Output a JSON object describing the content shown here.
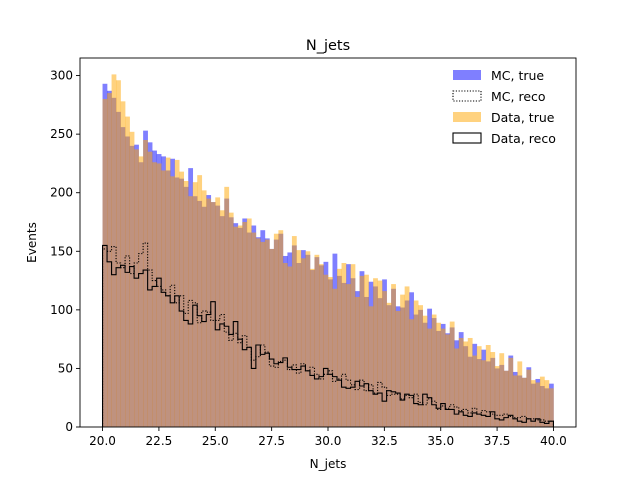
{
  "chart_data": {
    "type": "histogram",
    "title": "N_jets",
    "xlabel": "N_jets",
    "ylabel": "Events",
    "xlim": [
      19.0,
      41.0
    ],
    "ylim": [
      0,
      315
    ],
    "x_ticks": [
      "20.0",
      "22.5",
      "25.0",
      "27.5",
      "30.0",
      "32.5",
      "35.0",
      "37.5",
      "40.0"
    ],
    "y_ticks": [
      "0",
      "50",
      "100",
      "150",
      "200",
      "250",
      "300"
    ],
    "bins": {
      "start": 20.0,
      "end": 40.0,
      "count": 100
    },
    "legend_position": "top-right",
    "grid": false,
    "series": [
      {
        "name": "MC, true",
        "style": "filled",
        "color": "#0000ff",
        "opacity": 0.5,
        "values": [
          293,
          287,
          281,
          269,
          256,
          248,
          240,
          241,
          226,
          253,
          243,
          236,
          233,
          231,
          219,
          229,
          213,
          212,
          205,
          221,
          197,
          193,
          188,
          198,
          192,
          189,
          180,
          195,
          179,
          174,
          170,
          178,
          166,
          172,
          162,
          168,
          161,
          152,
          160,
          165,
          146,
          149,
          155,
          140,
          151,
          147,
          134,
          145,
          138,
          141,
          126,
          148,
          129,
          123,
          139,
          127,
          116,
          133,
          111,
          124,
          120,
          110,
          126,
          104,
          118,
          103,
          102,
          108,
          115,
          96,
          100,
          89,
          101,
          93,
          82,
          88,
          80,
          85,
          74,
          81,
          69,
          60,
          71,
          58,
          66,
          56,
          59,
          50,
          53,
          48,
          61,
          47,
          44,
          42,
          51,
          37,
          41,
          35,
          33,
          37
        ]
      },
      {
        "name": "MC, reco",
        "style": "step-dotted",
        "color": "#000000",
        "values": [
          152,
          150,
          154,
          140,
          136,
          146,
          131,
          140,
          148,
          157,
          134,
          125,
          120,
          117,
          112,
          121,
          106,
          112,
          97,
          108,
          106,
          89,
          99,
          98,
          91,
          91,
          96,
          81,
          74,
          80,
          72,
          78,
          68,
          57,
          60,
          70,
          64,
          52,
          51,
          56,
          57,
          49,
          53,
          46,
          54,
          48,
          51,
          45,
          41,
          45,
          48,
          39,
          41,
          45,
          40,
          36,
          32,
          40,
          31,
          36,
          29,
          38,
          34,
          27,
          28,
          28,
          24,
          27,
          25,
          28,
          21,
          19,
          24,
          22,
          15,
          18,
          16,
          19,
          17,
          14,
          15,
          12,
          16,
          11,
          14,
          13,
          11,
          10,
          10,
          11,
          9,
          8,
          8,
          9,
          7,
          7,
          6,
          6,
          5,
          5
        ]
      },
      {
        "name": "Data, true",
        "style": "filled",
        "color": "#ffa500",
        "opacity": 0.5,
        "values": [
          280,
          285,
          301,
          296,
          278,
          265,
          252,
          237,
          231,
          245,
          235,
          226,
          225,
          219,
          230,
          214,
          228,
          218,
          210,
          197,
          209,
          215,
          202,
          195,
          192,
          196,
          185,
          205,
          183,
          171,
          172,
          175,
          178,
          166,
          161,
          158,
          160,
          152,
          165,
          168,
          140,
          137,
          163,
          151,
          144,
          150,
          135,
          147,
          139,
          130,
          128,
          118,
          135,
          140,
          122,
          139,
          111,
          129,
          130,
          103,
          127,
          125,
          116,
          106,
          122,
          99,
          113,
          120,
          92,
          108,
          104,
          95,
          84,
          96,
          89,
          84,
          79,
          90,
          67,
          76,
          73,
          76,
          61,
          69,
          57,
          70,
          64,
          52,
          63,
          48,
          59,
          44,
          56,
          42,
          49,
          40,
          38,
          43,
          40,
          33
        ]
      },
      {
        "name": "Data, reco",
        "style": "step-solid",
        "color": "#000000",
        "values": [
          155,
          141,
          130,
          136,
          138,
          132,
          137,
          127,
          131,
          134,
          117,
          120,
          127,
          115,
          112,
          106,
          112,
          99,
          91,
          88,
          104,
          95,
          90,
          96,
          107,
          83,
          88,
          86,
          79,
          90,
          75,
          66,
          68,
          50,
          70,
          62,
          63,
          58,
          54,
          55,
          59,
          51,
          49,
          49,
          52,
          48,
          44,
          41,
          43,
          50,
          45,
          43,
          40,
          34,
          33,
          34,
          39,
          35,
          37,
          31,
          28,
          29,
          22,
          31,
          30,
          29,
          23,
          28,
          27,
          20,
          19,
          28,
          25,
          19,
          16,
          20,
          15,
          15,
          11,
          13,
          10,
          9,
          12,
          11,
          10,
          9,
          13,
          7,
          6,
          8,
          10,
          7,
          5,
          4,
          7,
          5,
          7,
          4,
          3,
          5
        ]
      }
    ]
  }
}
